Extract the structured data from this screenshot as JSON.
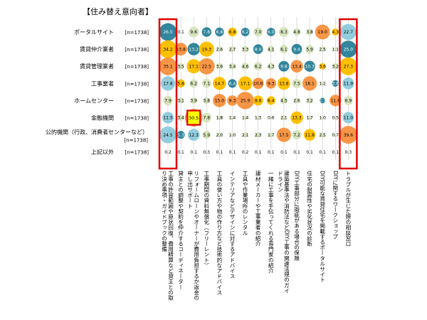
{
  "chart_data": {
    "type": "bubble-matrix",
    "title": "【住み替え意向者】",
    "rows": [
      {
        "label": "ポータルサイト",
        "n": "[n=1738]"
      },
      {
        "label": "賃貸仲介業者",
        "n": "[n=1738]"
      },
      {
        "label": "賃貸管理業者",
        "n": "[n=1738]"
      },
      {
        "label": "工事業者",
        "n": "[n=1738]"
      },
      {
        "label": "ホームセンター",
        "n": "[n=1738]"
      },
      {
        "label": "金融機関",
        "n": "[n=1738]"
      },
      {
        "label": "公的機関（行政、消費者センターなど）",
        "n": "[n=1738]"
      },
      {
        "label": "上記以外",
        "n": "[n=1738]"
      }
    ],
    "columns": [
      "工事の許容範囲や原状回復、費用精算など貸主との取り決め事項・ガイドブックの整備",
      "貸主との調整や契約を仲介するコーディネーター",
      "リフォームローンやオーナーが費用負担するか返金の申し出サポート",
      "工事期間の資料無償化（フリーレント）",
      "工具の使い方や物の作り方など技術的なアドバイス",
      "インテリアなどデザインに対するアドバイス",
      "工具や作業場所のレンタル",
      "建材メーカーや工事業者の紹介",
      "一緒に工事を手伝ってくれる専門家の紹介",
      "建築基準法や消防法などDIY工事の関連法規のガイドライン",
      "DIY工事部分に瑕疵がある場合の保険",
      "住宅の耐震性や劣化状況の診断",
      "DIY可能な賃貸住宅を掲載するポータルサイト",
      "DIYに関するワークショップ",
      "トラブルが生じた際の相談窓口"
    ],
    "values": [
      [
        26.5,
        0.1,
        9.6,
        7.8,
        6.8,
        6.8,
        6.2,
        7.0,
        6.0,
        8.3,
        4.8,
        3.8,
        19.0,
        4.3,
        22.7
      ],
      [
        34.2,
        13.8,
        13.2,
        19.3,
        2.6,
        2.7,
        3.3,
        8.0,
        4.1,
        6.1,
        9.4,
        5.9,
        2.5,
        1.1,
        25.0
      ],
      [
        35.1,
        3.5,
        17.1,
        22.5,
        3.6,
        3.4,
        4.6,
        6.2,
        4.3,
        9.8,
        13.4,
        10.3,
        3.6,
        3.2,
        27.3
      ],
      [
        17.8,
        5.8,
        6.2,
        7.1,
        14.7,
        6.4,
        17.1,
        10.8,
        9.3,
        13.8,
        7.5,
        18.1,
        1.2,
        3.8,
        11.9
      ],
      [
        7.9,
        3.1,
        3.9,
        3.8,
        15.0,
        9.3,
        25.9,
        8.6,
        6.4,
        4.5,
        2.6,
        3.2,
        2.7,
        11.6,
        6.9
      ],
      [
        11.5,
        3.4,
        30.5,
        7.8,
        1.8,
        1.4,
        1.4,
        1.3,
        0.6,
        2.1,
        13.3,
        1.7,
        1.0,
        0.5,
        11.0
      ],
      [
        24.5,
        5.3,
        12.3,
        5.9,
        2.0,
        1.0,
        2.1,
        2.3,
        1.7,
        17.5,
        7.2,
        11.8,
        2.5,
        0.7,
        39.6
      ],
      [
        0.2,
        0.1,
        0.1,
        0.3,
        0.1,
        0.1,
        0.2,
        0.1,
        0.1,
        0.1,
        0.1,
        0.1,
        0.1,
        0.1,
        0.3
      ]
    ],
    "highlighted_columns": [
      0,
      14
    ],
    "highlighted_cells": [
      [
        5,
        2
      ]
    ],
    "colors": {
      "top1": "#f79646",
      "top2": "#ffc000",
      "top3": "#31859c",
      "high": "#93cddd",
      "low": "#d7e4bd",
      "highlight_border": "#e00000",
      "highlight_fill": "#ffff00"
    }
  }
}
